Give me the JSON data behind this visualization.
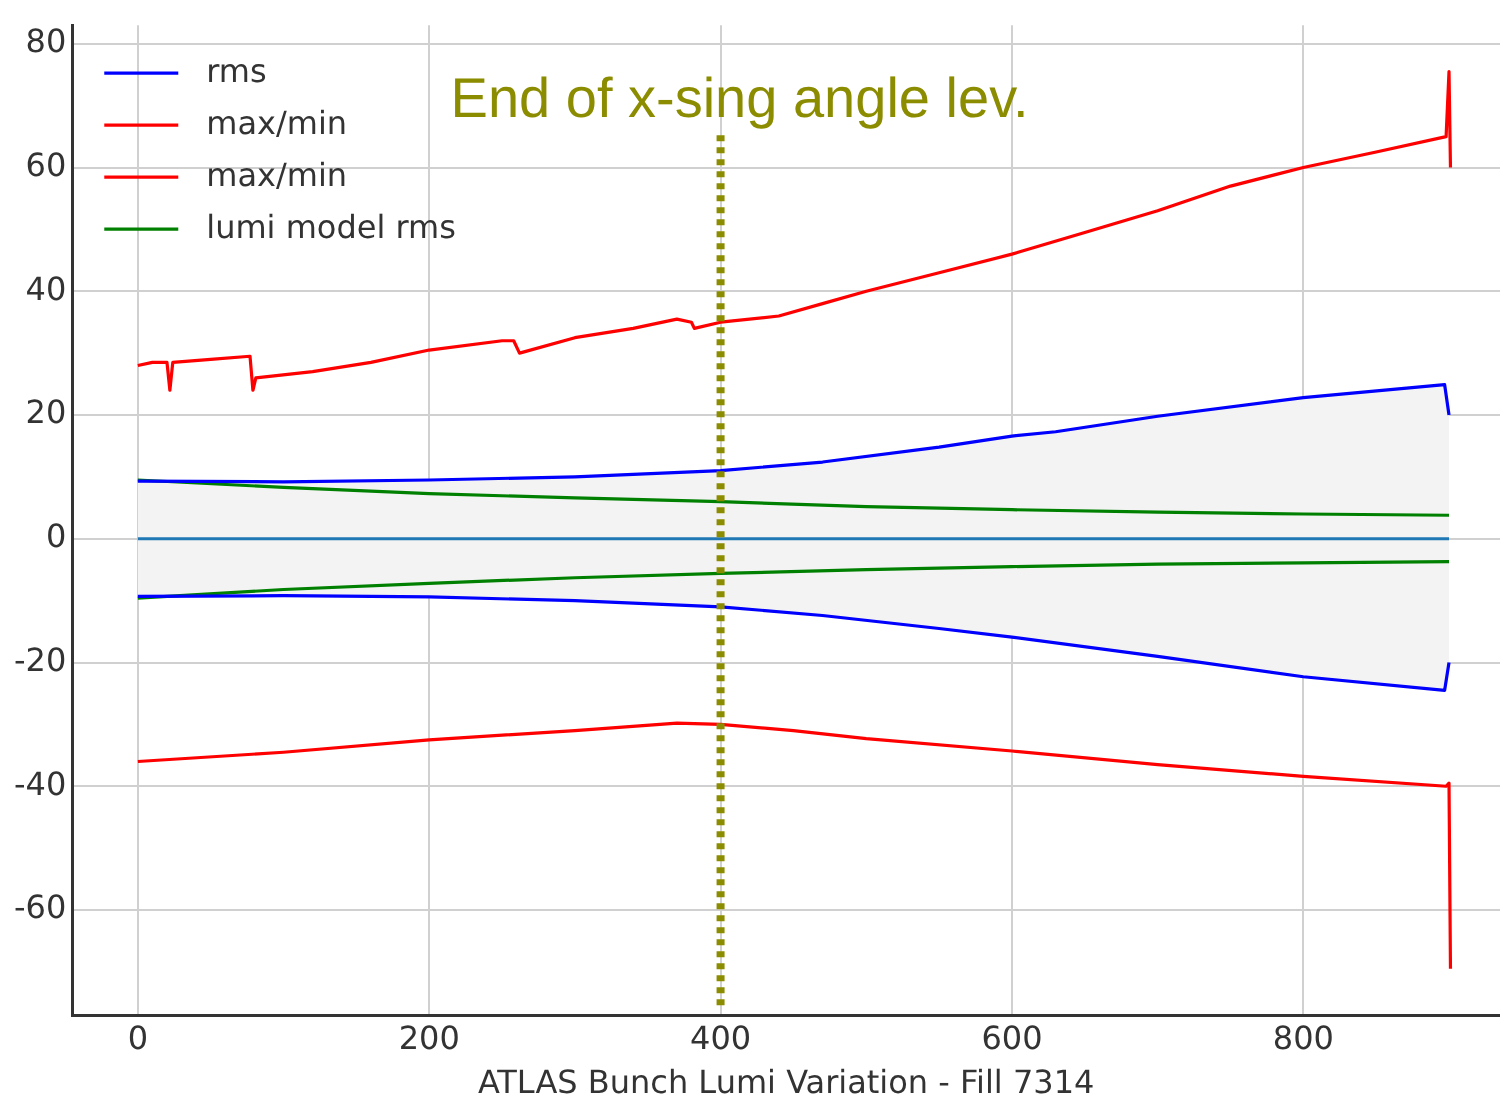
{
  "chart_data": {
    "type": "line",
    "xlabel": "ATLAS Bunch Lumi Variation - Fill 7314",
    "xlim": [
      -45,
      935
    ],
    "ylim": [
      -77,
      83
    ],
    "xticks": [
      0,
      200,
      400,
      600,
      800
    ],
    "yticks": [
      -60,
      -40,
      -20,
      0,
      20,
      40,
      60,
      80
    ],
    "grid": true,
    "legend": "top left",
    "marker": "none",
    "line_style": "solid",
    "ref_lines": [
      {
        "axis": "x",
        "value": 400,
        "label": "End of x-sing angle lev.",
        "color": "#8c8c00",
        "line_style": "dotted"
      }
    ],
    "series": [
      {
        "name": "rms",
        "color": "#0000ff",
        "x": [
          0,
          100,
          200,
          300,
          400,
          470,
          550,
          600,
          630,
          700,
          800,
          897,
          900
        ],
        "values": [
          9.3,
          9.2,
          9.5,
          10,
          11,
          12.4,
          14.8,
          16.6,
          17.3,
          19.8,
          22.8,
          24.9,
          20
        ]
      },
      {
        "name": "max/min",
        "color": "#ff0000",
        "x": [
          0,
          10,
          20,
          22,
          24,
          50,
          77,
          79,
          81,
          120,
          160,
          200,
          250,
          258,
          262,
          300,
          340,
          370,
          380,
          382,
          400,
          440,
          470,
          500,
          550,
          600,
          650,
          700,
          750,
          800,
          850,
          898,
          900,
          901
        ],
        "values": [
          28,
          28.5,
          28.5,
          24,
          28.5,
          29,
          29.5,
          24,
          26,
          27,
          28.5,
          30.5,
          32,
          32,
          30,
          32.5,
          34,
          35.5,
          35,
          34,
          35,
          36,
          38,
          40,
          43,
          46,
          49.5,
          53,
          57,
          60,
          62.5,
          65,
          75.5,
          60
        ]
      },
      {
        "name": "max/min",
        "color": "#ff0000",
        "x": [
          0,
          100,
          200,
          300,
          370,
          400,
          450,
          500,
          600,
          700,
          800,
          898,
          900,
          901
        ],
        "values": [
          -36,
          -34.5,
          -32.5,
          -31,
          -29.8,
          -30,
          -31,
          -32.3,
          -34.3,
          -36.5,
          -38.4,
          -40,
          -39.5,
          -69.5
        ]
      },
      {
        "name": "lumi model rms",
        "color": "#008000",
        "x": [
          0,
          100,
          200,
          300,
          400,
          500,
          600,
          700,
          800,
          900
        ],
        "values": [
          9.5,
          8.3,
          7.3,
          6.6,
          6,
          5.2,
          4.7,
          4.3,
          4,
          3.8
        ]
      },
      {
        "color": "#0000ff",
        "x": [
          0,
          100,
          200,
          300,
          400,
          470,
          550,
          600,
          700,
          800,
          897,
          900
        ],
        "values": [
          -9.3,
          -9.2,
          -9.4,
          -10,
          -11,
          -12.4,
          -14.5,
          -15.9,
          -19,
          -22.3,
          -24.5,
          -20
        ]
      },
      {
        "color": "#008000",
        "x": [
          0,
          100,
          200,
          300,
          400,
          500,
          600,
          700,
          800,
          900
        ],
        "values": [
          -9.6,
          -8.2,
          -7.2,
          -6.3,
          -5.6,
          -5,
          -4.5,
          -4.1,
          -3.9,
          -3.7
        ]
      },
      {
        "color": "#1f77b4",
        "x": [
          0,
          100,
          200,
          300,
          400,
          470,
          550,
          600,
          700,
          800,
          897,
          900
        ],
        "values": [
          0,
          0,
          0,
          0,
          0,
          0,
          0,
          0,
          0,
          0,
          0,
          0
        ],
        "lower": [
          -9.3,
          -9.2,
          -9.4,
          -10,
          -11,
          -12.4,
          -14.5,
          -15.9,
          -19,
          -22.3,
          -24.5,
          -20
        ],
        "upper": [
          9.3,
          9.2,
          9.5,
          10,
          11,
          12.4,
          14.8,
          16.6,
          19.8,
          22.8,
          24.9,
          20
        ]
      }
    ]
  }
}
